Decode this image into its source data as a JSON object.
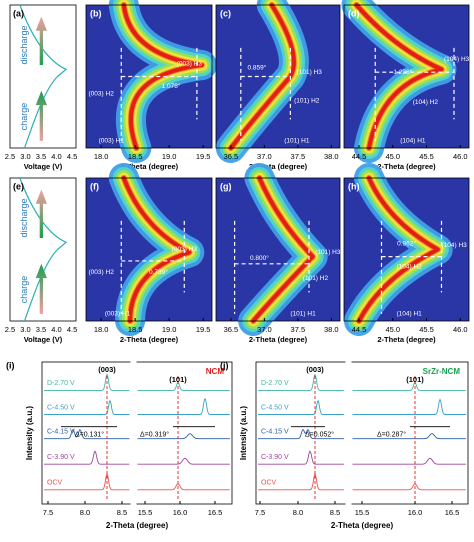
{
  "panels": {
    "a": {
      "label": "(a)",
      "ylabels": [
        "discharge",
        "charge"
      ],
      "xticks": [
        "2.5",
        "3.0",
        "3.5",
        "4.0",
        "4.5"
      ],
      "xlabel": "Voltage (V)"
    },
    "b": {
      "label": "(b)",
      "xticks": [
        "18.0",
        "18.5",
        "19.0",
        "19.5"
      ],
      "xlabel": "2-Theta (degree)",
      "annotations": [
        "(003) H3",
        "(003) H2",
        "(003) H1",
        "1.078°"
      ]
    },
    "c": {
      "label": "(c)",
      "xticks": [
        "36.5",
        "37.0",
        "37.5",
        "38.0"
      ],
      "xlabel": "2-Theta (degree)",
      "annotations": [
        "(101) H3",
        "(101) H2",
        "(101) H1",
        "0.859°"
      ]
    },
    "d": {
      "label": "(d)",
      "xticks": [
        "44.5",
        "45.0",
        "45.5",
        "46.0"
      ],
      "xlabel": "2-Theta (degree)",
      "annotations": [
        "(104) H3",
        "(104) H2",
        "(104) H1",
        "1.236°"
      ]
    },
    "e": {
      "label": "(e)",
      "ylabels": [
        "discharge",
        "charge"
      ],
      "xticks": [
        "2.5",
        "3.0",
        "3.5",
        "4.0",
        "4.5"
      ],
      "xlabel": "Voltage (V)"
    },
    "f": {
      "label": "(f)",
      "xticks": [
        "18.0",
        "18.5",
        "19.0",
        "19.5"
      ],
      "xlabel": "2-Theta (degree)",
      "annotations": [
        "(003) H3",
        "(003) H2",
        "(003) H1",
        "0.739°"
      ]
    },
    "g": {
      "label": "(g)",
      "xticks": [
        "36.5",
        "37.0",
        "37.5",
        "38.0"
      ],
      "xlabel": "2-Theta (degree)",
      "annotations": [
        "(101) H3",
        "(101) H2",
        "(101) H1",
        "0.800°"
      ]
    },
    "h": {
      "label": "(h)",
      "xticks": [
        "44.5",
        "45.0",
        "45.5",
        "46.0"
      ],
      "xlabel": "2-Theta (degree)",
      "annotations": [
        "(104) H3",
        "(104) H2",
        "(104) H1",
        "0.962°"
      ]
    },
    "i": {
      "label": "(i)",
      "title": "NCM",
      "ylabel": "Intensity (a.u.)",
      "xticks": [
        "7.5",
        "8.0",
        "8.5",
        "15.5",
        "16.0",
        "16.5"
      ],
      "xlabel": "2-Theta (degree)",
      "peaks": [
        "(003)",
        "(101)"
      ],
      "deltas": [
        "Δ=0.131°",
        "Δ=0.319°"
      ],
      "curves": [
        "D-2.70 V",
        "C-4.50 V",
        "C-4.15 V",
        "C-3.90 V",
        "OCV"
      ]
    },
    "j": {
      "label": "(j)",
      "title": "SrZr-NCM",
      "ylabel": "Intensity (a.u.)",
      "xticks": [
        "7.5",
        "8.0",
        "8.5",
        "15.5",
        "16.0",
        "16.5"
      ],
      "xlabel": "2-Theta (degree)",
      "peaks": [
        "(003)",
        "(101)"
      ],
      "deltas": [
        "Δ=0.052°",
        "Δ=0.287°"
      ],
      "curves": [
        "D-2.70 V",
        "C-4.50 V",
        "C-4.15 V",
        "C-3.90 V",
        "OCV"
      ]
    }
  }
}
